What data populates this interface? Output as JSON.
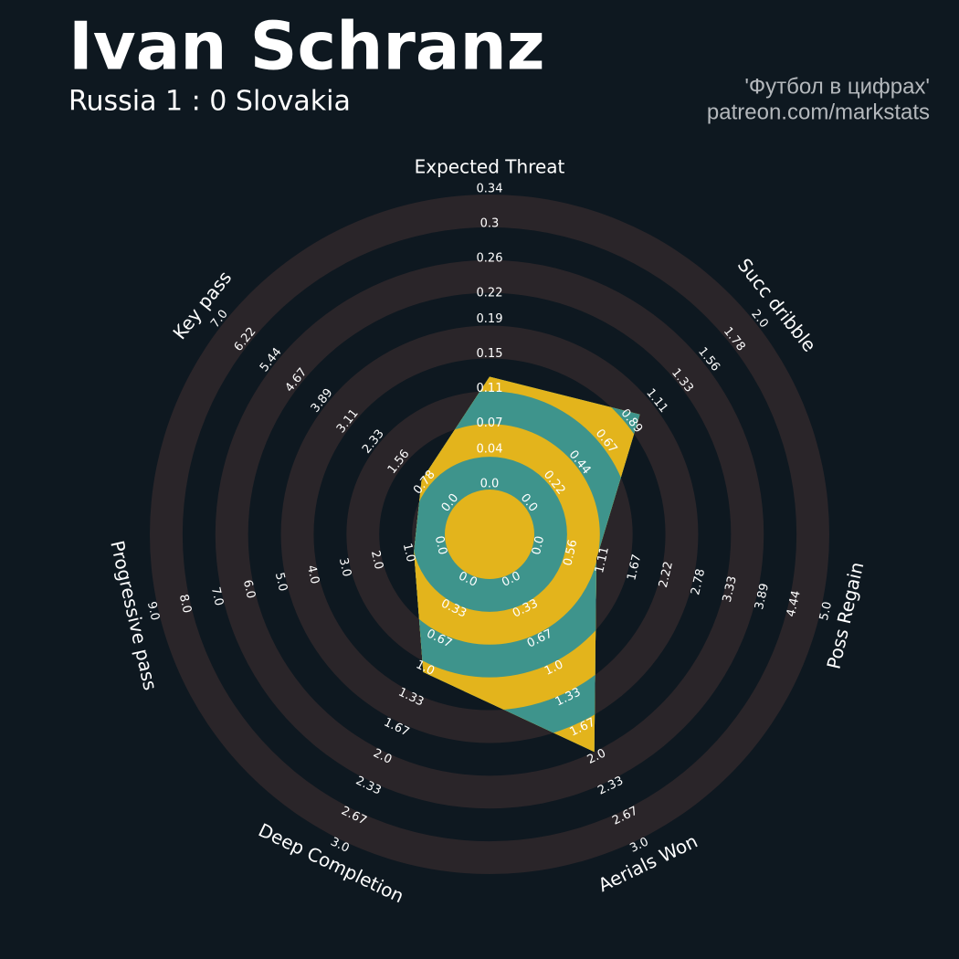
{
  "chart_data": {
    "type": "radar",
    "title": "Ivan Schranz",
    "subtitle": "Russia 1 : 0 Slovakia",
    "credits": [
      "'Футбол в цифрах'",
      "patreon.com/markstats"
    ],
    "categories": [
      "Expected Threat",
      "Succ dribble",
      "Poss Regain",
      "Aerials Won",
      "Deep Completion",
      "Progressive pass",
      "Key pass"
    ],
    "values": [
      0.13,
      1.0,
      1.1,
      2.0,
      1.1,
      1.0,
      1.0
    ],
    "ranges": [
      [
        0,
        0.34
      ],
      [
        0,
        2
      ],
      [
        0,
        5
      ],
      [
        0,
        3
      ],
      [
        0,
        3
      ],
      [
        0,
        9
      ],
      [
        0,
        7
      ]
    ],
    "axis_ticks": [
      [
        {
          "value": 0,
          "label": "0.0"
        },
        0.04,
        0.07,
        0.11,
        0.15,
        0.19,
        0.22,
        0.26,
        0.3,
        0.34
      ],
      [
        {
          "value": 0,
          "label": "0.0"
        },
        0.22,
        0.44,
        0.67,
        0.89,
        1.11,
        1.33,
        1.56,
        1.78,
        {
          "value": 2,
          "label": "2.0"
        }
      ],
      [
        {
          "value": 0,
          "label": "0.0"
        },
        0.56,
        1.11,
        1.67,
        2.22,
        2.78,
        3.33,
        3.89,
        4.44,
        {
          "value": 5,
          "label": "5.0"
        }
      ],
      [
        {
          "value": 0,
          "label": "0.0"
        },
        0.33,
        0.67,
        {
          "value": 1,
          "label": "1.0"
        },
        1.33,
        1.67,
        {
          "value": 2,
          "label": "2.0"
        },
        2.33,
        2.67,
        {
          "value": 3,
          "label": "3.0"
        }
      ],
      [
        {
          "value": 0,
          "label": "0.0"
        },
        0.33,
        0.67,
        {
          "value": 1,
          "label": "1.0"
        },
        1.33,
        1.67,
        {
          "value": 2,
          "label": "2.0"
        },
        2.33,
        2.67,
        {
          "value": 3,
          "label": "3.0"
        }
      ],
      [
        {
          "value": 0,
          "label": "0.0"
        },
        {
          "value": 1,
          "label": "1.0"
        },
        {
          "value": 2,
          "label": "2.0"
        },
        {
          "value": 3,
          "label": "3.0"
        },
        {
          "value": 4,
          "label": "4.0"
        },
        {
          "value": 5,
          "label": "5.0"
        },
        {
          "value": 6,
          "label": "6.0"
        },
        {
          "value": 7,
          "label": "7.0"
        },
        {
          "value": 8,
          "label": "8.0"
        },
        {
          "value": 9,
          "label": "9.0"
        }
      ],
      [
        {
          "value": 0,
          "label": "0.0"
        },
        0.78,
        1.56,
        2.33,
        3.11,
        3.89,
        4.67,
        5.44,
        6.22,
        {
          "value": 7,
          "label": "7.0"
        }
      ]
    ],
    "colors": {
      "background": "#0e1820",
      "ring": "#2a2529",
      "fill_a": "#e3b41c",
      "fill_b": "#3e948c"
    }
  }
}
